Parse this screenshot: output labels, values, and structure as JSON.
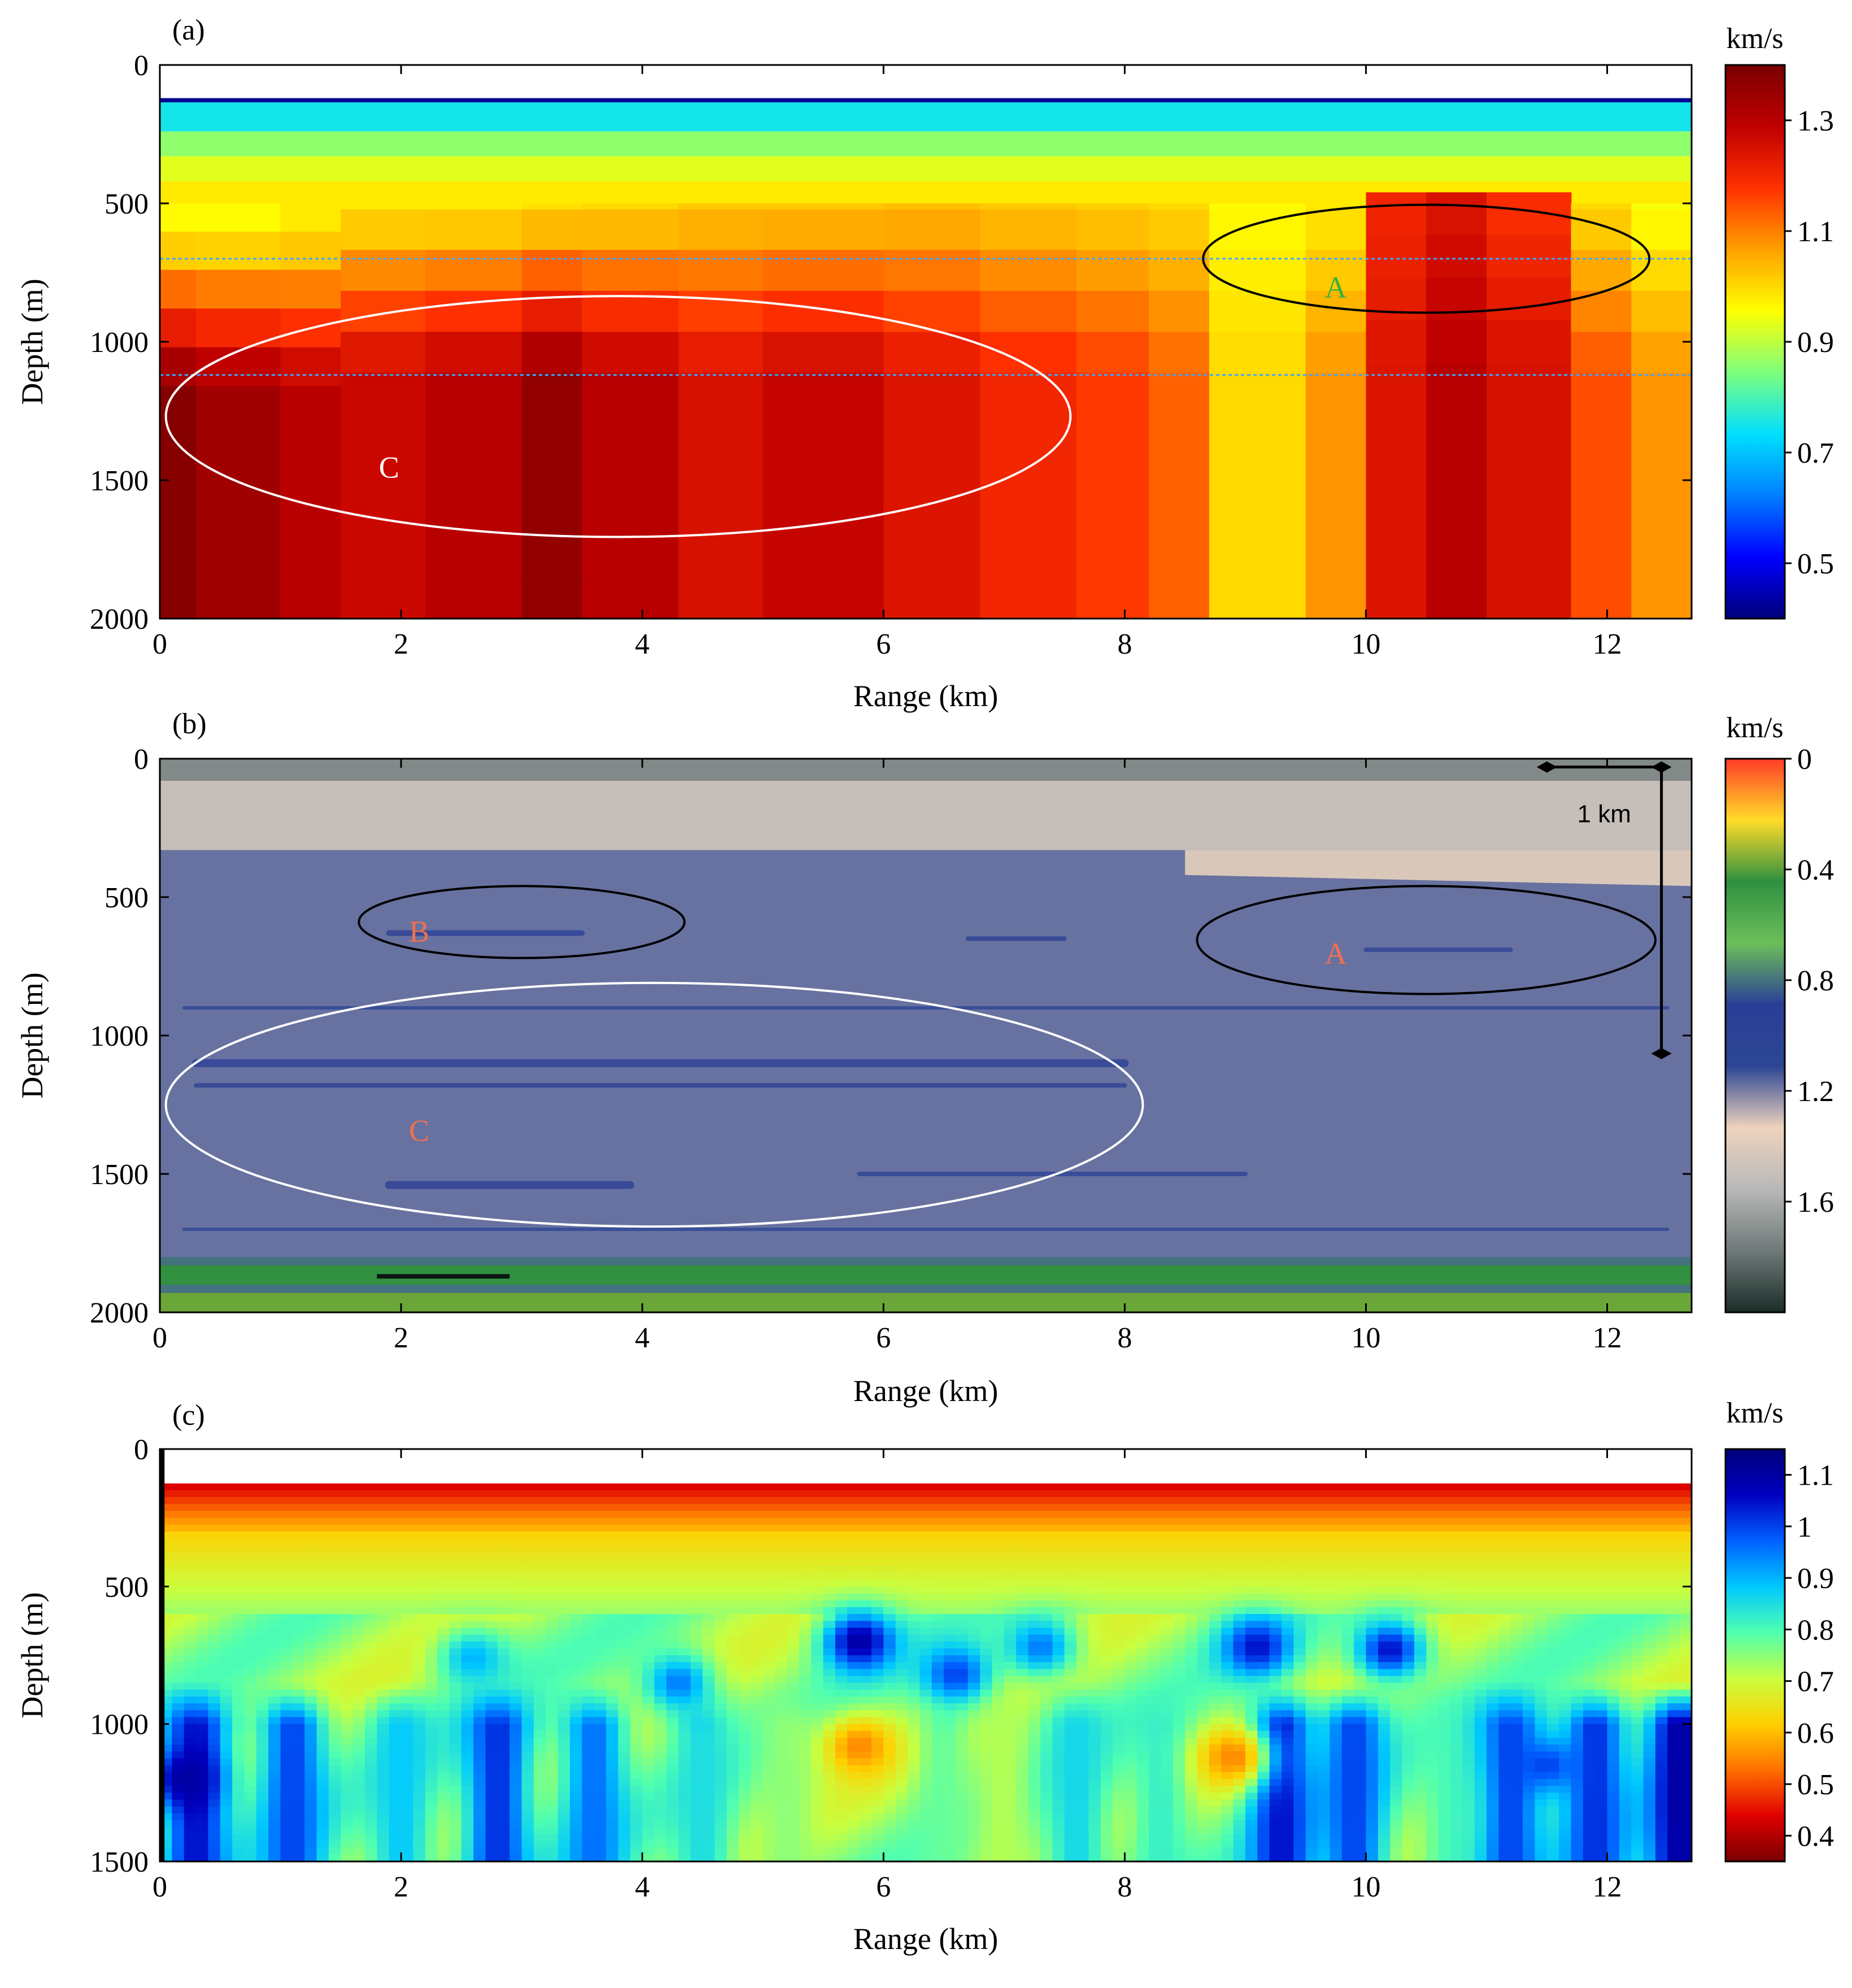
{
  "chart_data": [
    {
      "type": "heatmap",
      "panel_label": "(a)",
      "xlabel": "Range (km)",
      "ylabel": "Depth (m)",
      "xlim": [
        0,
        12.7
      ],
      "ylim": [
        2000,
        0
      ],
      "x_ticks": [
        0,
        2,
        4,
        6,
        8,
        10,
        12
      ],
      "y_ticks": [
        0,
        500,
        1000,
        1500,
        2000
      ],
      "colorbar": {
        "unit": "km/s",
        "range": [
          0.4,
          1.4
        ],
        "ticks": [
          0.5,
          0.7,
          0.9,
          1.1,
          1.3
        ],
        "reversed": false,
        "colors": [
          "#00007a",
          "#0000ff",
          "#0080ff",
          "#00e0ff",
          "#7dff7d",
          "#ffff00",
          "#ffa000",
          "#ff3000",
          "#c00000",
          "#7a0000"
        ]
      },
      "annotations": [
        {
          "label": "A",
          "color": "#3cb23c",
          "ellipse_color": "#000000",
          "x": 10.5,
          "y": 700,
          "rx": 1.85,
          "ry": 195
        },
        {
          "label": "C",
          "color": "#ffffff",
          "ellipse_color": "#ffffff",
          "x": 3.8,
          "y": 1270,
          "rx": 3.75,
          "ry": 435
        }
      ],
      "guide_lines_depth": [
        700,
        1120
      ],
      "water_layer": {
        "top": 120,
        "bottom": 240,
        "color": "#1ea0ff"
      },
      "velocity_columns": [
        {
          "x0": 0.0,
          "x1": 0.3,
          "shallow": 0.96,
          "deep": 1.38
        },
        {
          "x0": 0.3,
          "x1": 1.0,
          "shallow": 0.96,
          "deep": 1.34
        },
        {
          "x0": 1.0,
          "x1": 1.5,
          "shallow": 0.98,
          "deep": 1.3
        },
        {
          "x0": 1.5,
          "x1": 2.2,
          "shallow": 0.98,
          "deep": 1.27
        },
        {
          "x0": 2.2,
          "x1": 3.0,
          "shallow": 0.98,
          "deep": 1.3
        },
        {
          "x0": 3.0,
          "x1": 3.5,
          "shallow": 0.99,
          "deep": 1.36
        },
        {
          "x0": 3.5,
          "x1": 4.3,
          "shallow": 1.0,
          "deep": 1.3
        },
        {
          "x0": 4.3,
          "x1": 5.0,
          "shallow": 1.02,
          "deep": 1.25
        },
        {
          "x0": 5.0,
          "x1": 6.0,
          "shallow": 1.02,
          "deep": 1.28
        },
        {
          "x0": 6.0,
          "x1": 6.8,
          "shallow": 1.03,
          "deep": 1.24
        },
        {
          "x0": 6.8,
          "x1": 7.6,
          "shallow": 1.02,
          "deep": 1.2
        },
        {
          "x0": 7.6,
          "x1": 8.2,
          "shallow": 1.01,
          "deep": 1.17
        },
        {
          "x0": 8.2,
          "x1": 8.7,
          "shallow": 1.0,
          "deep": 1.13
        },
        {
          "x0": 8.7,
          "x1": 9.5,
          "shallow": 0.96,
          "deep": 1.0
        },
        {
          "x0": 9.5,
          "x1": 10.0,
          "shallow": 0.98,
          "deep": 1.08
        },
        {
          "x0": 10.0,
          "x1": 10.5,
          "shallow": 1.2,
          "deep": 1.24
        },
        {
          "x0": 10.5,
          "x1": 11.0,
          "shallow": 1.24,
          "deep": 1.3
        },
        {
          "x0": 11.0,
          "x1": 11.7,
          "shallow": 1.18,
          "deep": 1.25
        },
        {
          "x0": 11.7,
          "x1": 12.2,
          "shallow": 1.0,
          "deep": 1.15
        },
        {
          "x0": 12.2,
          "x1": 12.7,
          "shallow": 0.95,
          "deep": 1.08
        }
      ]
    },
    {
      "type": "heatmap",
      "panel_label": "(b)",
      "xlabel": "Range (km)",
      "ylabel": "Depth (m)",
      "xlim": [
        0,
        12.7
      ],
      "ylim": [
        2000,
        0
      ],
      "x_ticks": [
        0,
        2,
        4,
        6,
        8,
        10,
        12
      ],
      "y_ticks": [
        0,
        500,
        1000,
        1500,
        2000
      ],
      "colorbar": {
        "unit": "km/s",
        "range": [
          0,
          2.0
        ],
        "ticks": [
          0,
          0.4,
          0.8,
          1.2,
          1.6
        ],
        "reversed": true,
        "colors": [
          "#ff3c28",
          "#ffdc28",
          "#2f9040",
          "#6cbf5a",
          "#2a3e96",
          "#2c4694",
          "#eed3bc",
          "#b8b8b8",
          "#6e7a78",
          "#1c2c28"
        ]
      },
      "scale_bar": {
        "label": "1 km"
      },
      "annotations": [
        {
          "label": "B",
          "color": "#f07050",
          "ellipse_color": "#000000",
          "x": 3.0,
          "y": 590,
          "rx": 1.35,
          "ry": 130
        },
        {
          "label": "A",
          "color": "#f07050",
          "ellipse_color": "#000000",
          "x": 10.5,
          "y": 655,
          "rx": 1.9,
          "ry": 195
        },
        {
          "label": "C",
          "color": "#f07050",
          "ellipse_color": "#ffffff",
          "x": 4.1,
          "y": 1250,
          "rx": 4.05,
          "ry": 440
        }
      ]
    },
    {
      "type": "heatmap",
      "panel_label": "(c)",
      "xlabel": "Range (km)",
      "ylabel": "Depth (m)",
      "xlim": [
        0,
        12.7
      ],
      "ylim": [
        1500,
        0
      ],
      "x_ticks": [
        0,
        2,
        4,
        6,
        8,
        10,
        12
      ],
      "y_ticks": [
        0,
        500,
        1000,
        1500
      ],
      "colorbar": {
        "unit": "km/s",
        "range": [
          0.35,
          1.15
        ],
        "ticks": [
          0.4,
          0.5,
          0.6,
          0.7,
          0.8,
          0.9,
          1.0,
          1.1
        ],
        "reversed": false,
        "colors": [
          "#7a0000",
          "#e00000",
          "#ff7000",
          "#ffd000",
          "#c8ff40",
          "#50ffb0",
          "#00c8ff",
          "#0060ff",
          "#0000c0",
          "#00007a"
        ]
      },
      "water_depth": 120,
      "blobs": [
        {
          "x": 5.8,
          "y": 700,
          "v": 1.1
        },
        {
          "x": 9.1,
          "y": 720,
          "v": 1.05
        },
        {
          "x": 10.2,
          "y": 730,
          "v": 1.05
        },
        {
          "x": 6.6,
          "y": 820,
          "v": 1.0
        },
        {
          "x": 4.3,
          "y": 850,
          "v": 0.95
        },
        {
          "x": 7.3,
          "y": 720,
          "v": 0.95
        },
        {
          "x": 2.6,
          "y": 760,
          "v": 0.9
        },
        {
          "x": 5.8,
          "y": 1080,
          "v": 0.55
        },
        {
          "x": 8.9,
          "y": 1120,
          "v": 0.55
        },
        {
          "x": 11.5,
          "y": 1150,
          "v": 1.0
        },
        {
          "x": 0.2,
          "y": 1200,
          "v": 1.1
        }
      ],
      "deep_columns": [
        {
          "x": 0.3,
          "v": 1.05
        },
        {
          "x": 1.1,
          "v": 1.0
        },
        {
          "x": 2.0,
          "v": 0.88
        },
        {
          "x": 2.8,
          "v": 1.02
        },
        {
          "x": 3.6,
          "v": 0.96
        },
        {
          "x": 4.5,
          "v": 0.85
        },
        {
          "x": 5.2,
          "v": 0.75
        },
        {
          "x": 6.5,
          "v": 0.78
        },
        {
          "x": 7.0,
          "v": 0.72
        },
        {
          "x": 7.6,
          "v": 0.86
        },
        {
          "x": 8.3,
          "v": 0.82
        },
        {
          "x": 9.3,
          "v": 1.05
        },
        {
          "x": 9.9,
          "v": 1.0
        },
        {
          "x": 10.7,
          "v": 0.8
        },
        {
          "x": 11.2,
          "v": 1.0
        },
        {
          "x": 11.9,
          "v": 1.02
        },
        {
          "x": 12.6,
          "v": 1.1
        }
      ]
    }
  ]
}
